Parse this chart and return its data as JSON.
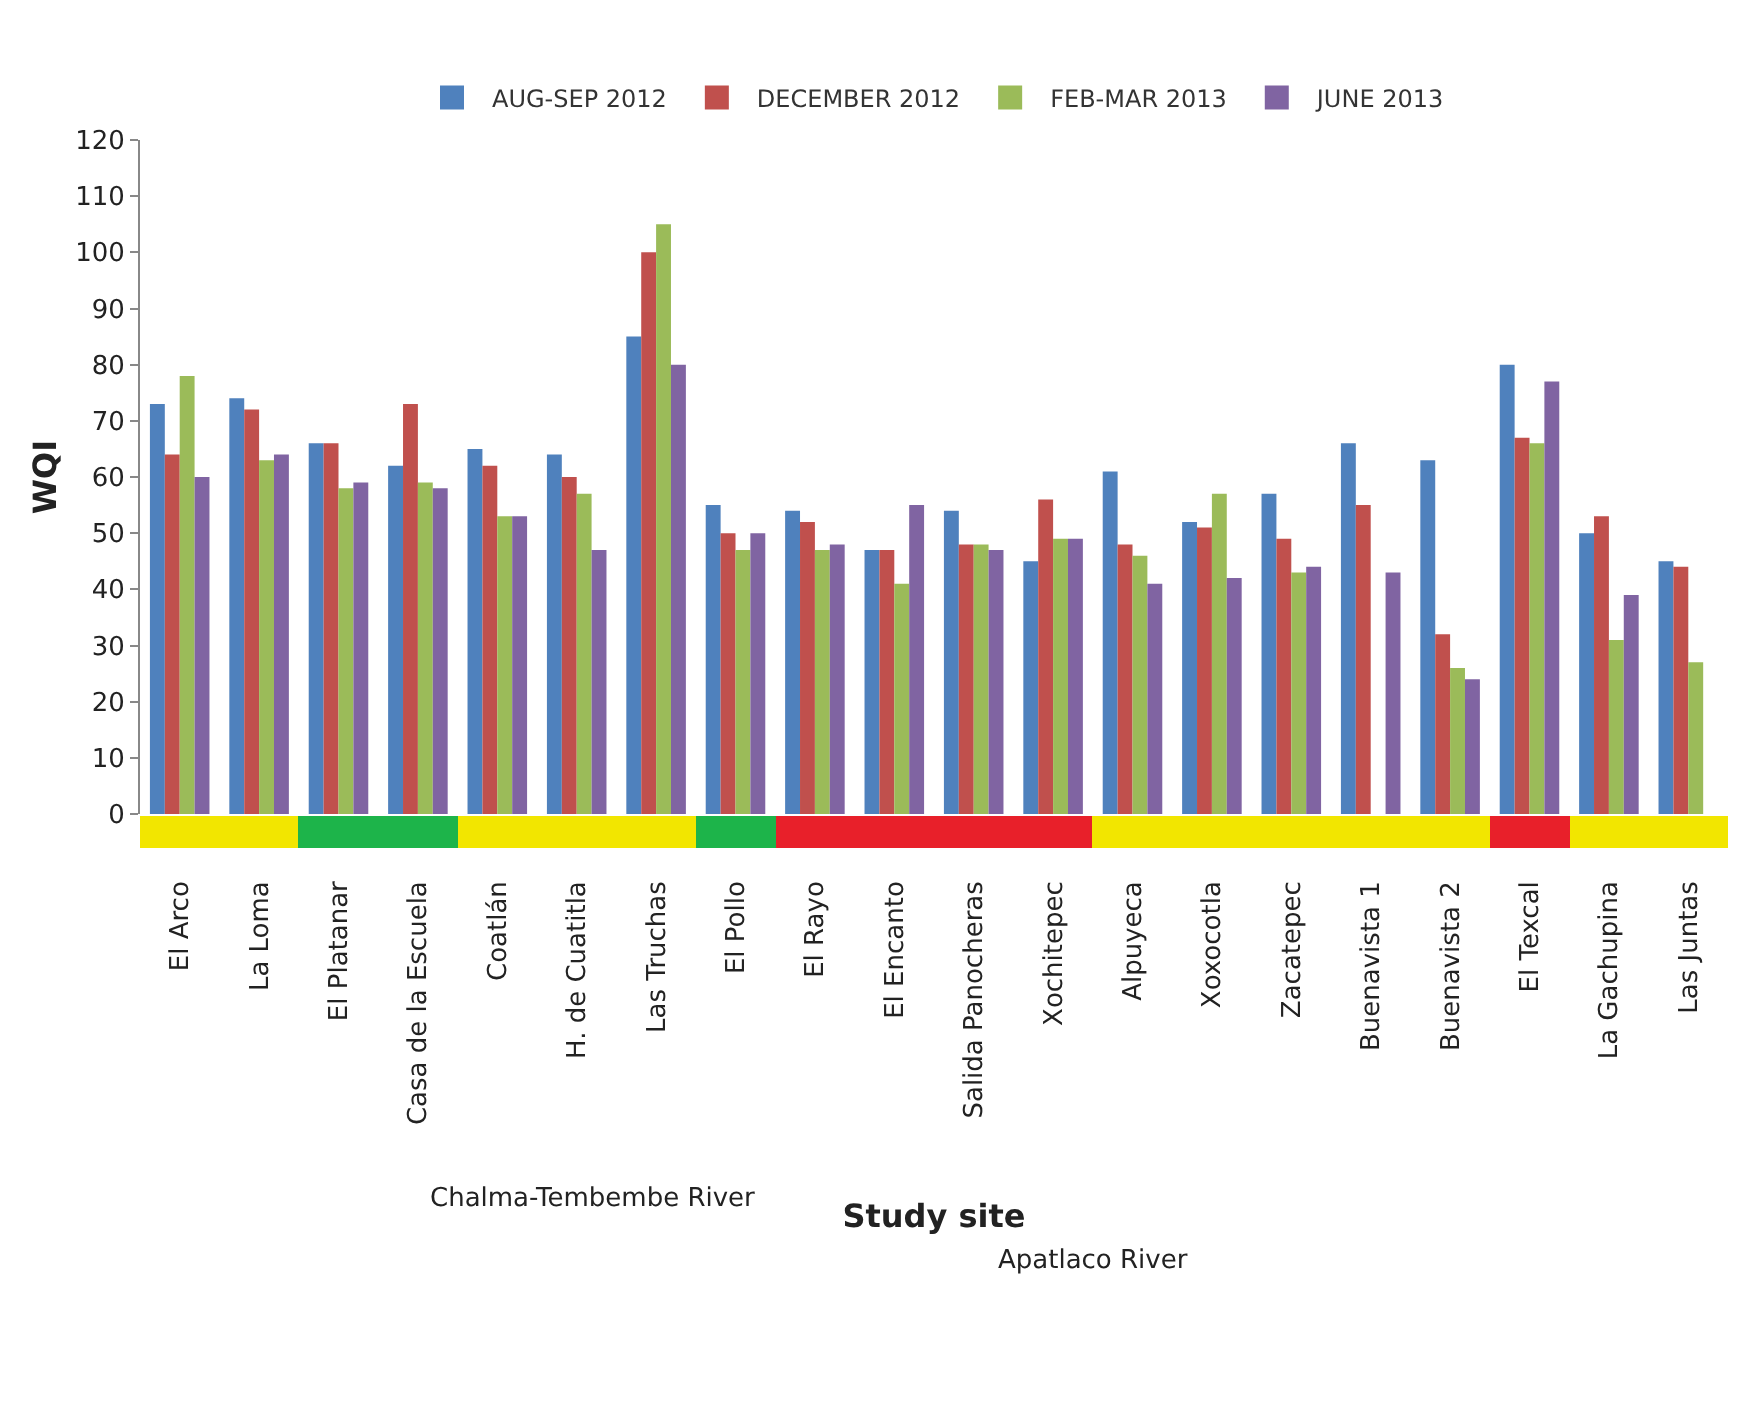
{
  "chart_data": {
    "type": "bar",
    "xlabel": "Study site",
    "ylabel": "WQI",
    "categories": [
      "El Arco",
      "La Loma",
      "El Platanar",
      "Casa de la Escuela",
      "Coatlán",
      "H. de Cuatitla",
      "Las Truchas",
      "El Pollo",
      "El Rayo",
      "El Encanto",
      "Salida Panocheras",
      "Xochitepec",
      "Alpuyeca",
      "Xoxocotla",
      "Zacatepec",
      "Buenavista 1",
      "Buenavista 2",
      "El Texcal",
      "La Gachupina",
      "Las Juntas"
    ],
    "series": [
      {
        "name": "AUG-SEP 2012",
        "color": "#4f81bd",
        "values": [
          73,
          74,
          66,
          62,
          65,
          64,
          85,
          55,
          54,
          47,
          54,
          45,
          61,
          52,
          57,
          66,
          63,
          80,
          50,
          45
        ]
      },
      {
        "name": "DECEMBER 2012",
        "color": "#c0504d",
        "values": [
          64,
          72,
          66,
          73,
          62,
          60,
          100,
          50,
          52,
          47,
          48,
          56,
          48,
          51,
          49,
          55,
          32,
          67,
          53,
          44
        ]
      },
      {
        "name": "FEB-MAR 2013",
        "color": "#9bbb59",
        "values": [
          78,
          63,
          58,
          59,
          53,
          57,
          105,
          47,
          47,
          41,
          48,
          49,
          46,
          57,
          43,
          null,
          26,
          66,
          31,
          27
        ]
      },
      {
        "name": "JUNE 2013",
        "color": "#8064a2",
        "values": [
          60,
          64,
          59,
          58,
          53,
          47,
          80,
          50,
          48,
          55,
          47,
          49,
          41,
          42,
          44,
          43,
          24,
          77,
          39,
          null
        ]
      }
    ],
    "ylim": [
      0,
      120
    ],
    "yticks": [
      0,
      10,
      20,
      30,
      40,
      50,
      60,
      70,
      80,
      90,
      100,
      110,
      120
    ],
    "legend": "top",
    "annotations": [
      "Chalma-Tembembe River",
      "Apatlaco River"
    ]
  }
}
